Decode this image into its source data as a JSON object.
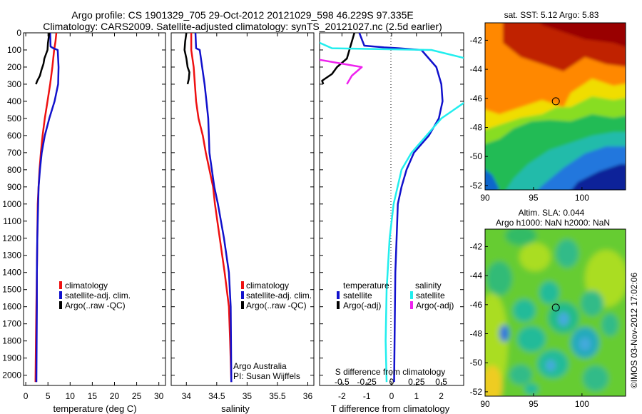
{
  "header": {
    "line1": "Argo profile: CS 1901329_705 29-Oct-2012 20121029_598 46.229S 97.335E",
    "line2": "Climatology: CARS2009. Satellite-adjusted climatology: synTS_20121027.nc (2.5d earlier)"
  },
  "colors": {
    "climatology": "#ee1111",
    "satellite": "#1111cc",
    "argo": "#000000",
    "satellite_salinity": "#22eeee",
    "argo_salinity": "#ee22ee"
  },
  "chart_data": [
    {
      "id": "temperature",
      "type": "line",
      "xlabel": "temperature (deg C)",
      "ylabel": "",
      "xlim": [
        -0.5,
        31.5
      ],
      "ylim": [
        2060,
        0
      ],
      "x_ticks": [
        0,
        5,
        10,
        15,
        20,
        25,
        30
      ],
      "y_ticks": [
        0,
        100,
        200,
        300,
        400,
        500,
        600,
        700,
        800,
        900,
        1000,
        1100,
        1200,
        1300,
        1400,
        1500,
        1600,
        1700,
        1800,
        1900,
        2000
      ],
      "series": [
        {
          "name": "climatology",
          "x": [
            6.9,
            6.7,
            6.4,
            6.0,
            5.5,
            4.9,
            4.3,
            3.8,
            3.4,
            3.1,
            2.9,
            2.7,
            2.6,
            2.5,
            2.4,
            2.3,
            2.2
          ],
          "y": [
            0,
            50,
            100,
            200,
            300,
            400,
            500,
            600,
            700,
            800,
            900,
            1000,
            1200,
            1400,
            1600,
            1800,
            2040
          ]
        },
        {
          "name": "satellite-adj. clim.",
          "x": [
            5.5,
            5.6,
            6.2,
            7.2,
            7.4,
            7.3,
            6.5,
            5.3,
            4.3,
            3.6,
            3.2,
            2.9,
            2.8,
            2.6,
            2.5,
            2.5,
            2.4
          ],
          "y": [
            0,
            80,
            90,
            100,
            200,
            300,
            400,
            500,
            600,
            700,
            800,
            900,
            1000,
            1200,
            1400,
            1600,
            2040
          ]
        },
        {
          "name": "Argo(..raw -QC)",
          "x": [
            5.3,
            5.0,
            4.9,
            4.2,
            4.0,
            3.5,
            3.2,
            2.6,
            2.3
          ],
          "y": [
            0,
            60,
            100,
            150,
            180,
            220,
            250,
            280,
            300
          ]
        }
      ],
      "legend": [
        "climatology",
        "satellite-adj. clim.",
        "Argo(..raw -QC)"
      ]
    },
    {
      "id": "salinity",
      "type": "line",
      "xlabel": "salinity",
      "ylabel": "",
      "xlim": [
        33.75,
        36.1
      ],
      "ylim": [
        2060,
        0
      ],
      "x_ticks": [
        34,
        34.5,
        35,
        35.5,
        36
      ],
      "x_tick_labels": [
        "34",
        "34.5",
        "35",
        "35.5",
        "36"
      ],
      "series": [
        {
          "name": "climatology",
          "x": [
            34.08,
            34.08,
            34.12,
            34.14,
            34.16,
            34.2,
            34.27,
            34.32,
            34.38,
            34.44,
            34.47,
            34.55,
            34.63,
            34.7,
            34.72,
            34.74
          ],
          "y": [
            0,
            100,
            200,
            300,
            400,
            500,
            600,
            700,
            800,
            900,
            1000,
            1200,
            1400,
            1600,
            1800,
            2040
          ]
        },
        {
          "name": "satellite-adj. clim.",
          "x": [
            34.15,
            34.16,
            34.22,
            34.26,
            34.3,
            34.33,
            34.36,
            34.37,
            34.38,
            34.42,
            34.46,
            34.52,
            34.62,
            34.7,
            34.73,
            34.74
          ],
          "y": [
            0,
            90,
            100,
            200,
            300,
            400,
            500,
            600,
            700,
            800,
            900,
            1000,
            1200,
            1400,
            1600,
            2040
          ]
        },
        {
          "name": "Argo(..raw -QC)",
          "x": [
            34.0,
            33.98,
            33.97,
            34.0,
            34.02,
            34.05,
            34.04,
            34.02
          ],
          "y": [
            0,
            50,
            100,
            150,
            200,
            230,
            270,
            300
          ]
        }
      ],
      "legend": [
        "climatology",
        "satellite-adj. clim.",
        "Argo(..raw -QC)"
      ],
      "annotations": [
        "Argo Australia",
        "PI: Susan Wijffels"
      ]
    },
    {
      "id": "difference",
      "type": "line",
      "xlabel": "T difference from climatology",
      "x2label": "S difference from climatology",
      "ylabel": "",
      "xlim": [
        -2.9,
        2.9
      ],
      "ylim": [
        2060,
        0
      ],
      "x_ticks": [
        -2,
        -1,
        0,
        1,
        2
      ],
      "x2_ticks": [
        -0.5,
        -0.25,
        0,
        0.25,
        0.5
      ],
      "x2_tick_labels": [
        "-0.5",
        "-0.25",
        "0",
        "0.25",
        "0.5"
      ],
      "zero_line": "dotted",
      "series": [
        {
          "name": "temperature satellite",
          "x": [
            -1.3,
            -1.1,
            -0.3,
            0.3,
            1.2,
            1.8,
            2.0,
            2.05,
            1.9,
            1.5,
            0.9,
            0.6,
            0.4,
            0.25,
            0.2,
            0.15,
            0.1
          ],
          "y": [
            0,
            75,
            85,
            90,
            100,
            200,
            300,
            400,
            500,
            600,
            700,
            800,
            900,
            1000,
            1200,
            1400,
            2040
          ]
        },
        {
          "name": "temperature Argo(-adj)",
          "x": [
            -1.5,
            -1.7,
            -1.8,
            -2.2,
            -2.4,
            -2.8,
            -2.75
          ],
          "y": [
            0,
            100,
            150,
            200,
            240,
            280,
            300
          ]
        },
        {
          "name": "salinity satellite",
          "x": [
            -0.95,
            -0.6,
            0.4,
            0.75,
            0.95,
            0.9,
            0.75,
            0.5,
            0.35,
            0.2,
            0.1,
            0.02,
            -0.02,
            -0.05,
            -0.06,
            -0.05
          ],
          "y": [
            0,
            90,
            100,
            150,
            200,
            300,
            400,
            500,
            600,
            700,
            800,
            1000,
            1200,
            1500,
            1800,
            2040
          ]
        },
        {
          "name": "salinity Argo(-adj)",
          "x": [
            -0.8,
            -0.85,
            -1.0,
            -0.8,
            -0.3,
            -0.4,
            -0.45
          ],
          "y": [
            0,
            50,
            100,
            150,
            200,
            250,
            300
          ]
        }
      ],
      "legend_titles": [
        "temperature",
        "salinity"
      ],
      "legend": [
        "satellite",
        "Argo(-adj)",
        "satellite",
        "Argo(-adj)"
      ]
    },
    {
      "id": "sst_map",
      "type": "heatmap",
      "title": "sat. SST: 5.12 Argo: 5.83",
      "xlim": [
        90,
        104.5
      ],
      "ylim": [
        -52.3,
        -40.8
      ],
      "x_ticks": [
        90,
        95,
        100
      ],
      "y_ticks": [
        -52,
        -50,
        -48,
        -46,
        -44,
        -42
      ],
      "marker": {
        "lon": 97.3,
        "lat": -46.2
      }
    },
    {
      "id": "sla_map",
      "type": "heatmap",
      "title": "Altim. SLA: 0.044",
      "subtitle": "Argo h1000: NaN h2000: NaN",
      "xlim": [
        90,
        104.5
      ],
      "ylim": [
        -52.3,
        -40.8
      ],
      "x_ticks": [
        90,
        95,
        100
      ],
      "y_ticks": [
        -52,
        -50,
        -48,
        -46,
        -44,
        -42
      ],
      "marker": {
        "lon": 97.3,
        "lat": -46.2
      }
    }
  ],
  "footer": {
    "vertical_label": "©IMOS 03-Nov-2012 17:02:06"
  }
}
